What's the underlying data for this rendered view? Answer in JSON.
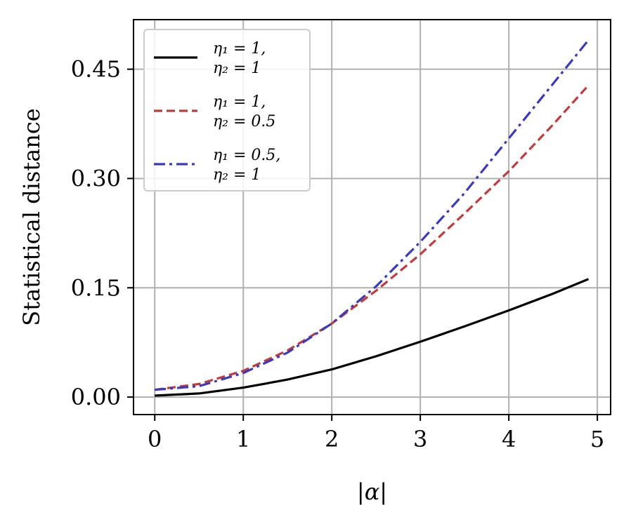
{
  "chart_data": {
    "type": "line",
    "title": "",
    "xlabel": "|α|",
    "ylabel": "Statistical distance",
    "xlim": [
      -0.24,
      5.15
    ],
    "ylim": [
      -0.024,
      0.518
    ],
    "xticks": [
      0,
      1,
      2,
      3,
      4,
      5
    ],
    "xtick_labels": [
      "0",
      "1",
      "2",
      "3",
      "4",
      "5"
    ],
    "yticks": [
      0.0,
      0.15,
      0.3,
      0.45
    ],
    "ytick_labels": [
      "0.00",
      "0.15",
      "0.30",
      "0.45"
    ],
    "grid": true,
    "legend_position": "top-left",
    "series": [
      {
        "name": "η1 = 1, η2 = 1",
        "legend_lines": [
          "η₁ = 1,",
          "η₂ = 1"
        ],
        "color": "#000000",
        "dash": "solid",
        "x": [
          0,
          0.5,
          1,
          1.5,
          2,
          2.5,
          3,
          3.5,
          4,
          4.5,
          4.9
        ],
        "y": [
          0.002,
          0.005,
          0.013,
          0.024,
          0.038,
          0.056,
          0.076,
          0.097,
          0.119,
          0.142,
          0.162
        ]
      },
      {
        "name": "η1 = 1, η2 = 0.5",
        "legend_lines": [
          "η₁ = 1,",
          "η₂ = 0.5"
        ],
        "color": "#c23b3b",
        "dash": "dashed",
        "x": [
          0,
          0.5,
          1,
          1.5,
          2,
          2.5,
          3,
          3.5,
          4,
          4.5,
          4.9
        ],
        "y": [
          0.01,
          0.018,
          0.036,
          0.064,
          0.101,
          0.146,
          0.196,
          0.252,
          0.31,
          0.374,
          0.428
        ]
      },
      {
        "name": "η1 = 0.5, η2 = 1",
        "legend_lines": [
          "η₁ = 0.5,",
          "η₂ = 1"
        ],
        "color": "#3a3abf",
        "dash": "dashdot",
        "x": [
          0,
          0.5,
          1,
          1.5,
          2,
          2.5,
          3,
          3.5,
          4,
          4.5,
          4.9
        ],
        "y": [
          0.01,
          0.015,
          0.033,
          0.061,
          0.101,
          0.152,
          0.213,
          0.28,
          0.355,
          0.43,
          0.49
        ]
      }
    ]
  }
}
